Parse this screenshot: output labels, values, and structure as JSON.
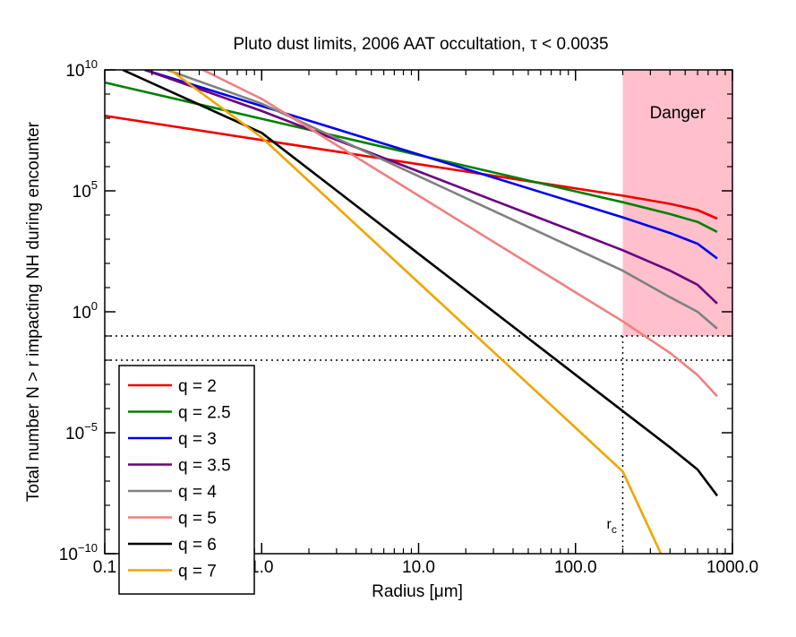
{
  "chart_data": {
    "type": "line",
    "title": "Pluto dust limits, 2006 AAT occultation, τ < 0.0035",
    "xlabel": "Radius [μm]",
    "ylabel": "Total number N > r impacting NH during encounter",
    "x_scale": "log",
    "y_scale": "log",
    "xlim": [
      0.1,
      1000
    ],
    "ylim": [
      1e-10,
      10000000000.0
    ],
    "x_ticks": [
      {
        "value": 0.1,
        "label": "0.1"
      },
      {
        "value": 1,
        "label": "1.0"
      },
      {
        "value": 10,
        "label": "10.0"
      },
      {
        "value": 100,
        "label": "100.0"
      },
      {
        "value": 1000,
        "label": "1000.0"
      }
    ],
    "y_ticks": [
      {
        "value": 1e-10,
        "base": "10",
        "exp": "−10"
      },
      {
        "value": 1e-05,
        "base": "10",
        "exp": "−5"
      },
      {
        "value": 1,
        "base": "10",
        "exp": "0"
      },
      {
        "value": 100000.0,
        "base": "10",
        "exp": "5"
      },
      {
        "value": 10000000000.0,
        "base": "10",
        "exp": "10"
      }
    ],
    "danger_region": {
      "x_min": 200,
      "x_max": 1000,
      "y_min": 0.1,
      "y_max": 10000000000.0,
      "label": "Danger",
      "color": "#ffc0cb"
    },
    "reference_lines": {
      "horizontal": [
        0.1,
        0.01
      ],
      "vertical": [
        {
          "x": 200,
          "label_base": "r",
          "label_sub": "c"
        }
      ]
    },
    "series": [
      {
        "name": "q = 2",
        "color": "#ee0000",
        "x": [
          0.1,
          1,
          10,
          100,
          200,
          400,
          600,
          800
        ],
        "y": [
          126000000.0,
          12600000.0,
          1260000.0,
          126000.0,
          63000.0,
          29000.0,
          16000.0,
          7100.0
        ]
      },
      {
        "name": "q = 2.5",
        "color": "#008000",
        "x": [
          0.1,
          1,
          10,
          100,
          200,
          400,
          600,
          800
        ],
        "y": [
          3000000000.0,
          95000000.0,
          3000000.0,
          95000.0,
          34000.0,
          11000.0,
          5200.0,
          2000.0
        ]
      },
      {
        "name": "q = 3",
        "color": "#0000ee",
        "x": [
          0.18,
          1,
          10,
          100,
          200,
          400,
          600,
          800
        ],
        "y": [
          10000000000.0,
          320000000.0,
          3200000.0,
          32000.0,
          8000.0,
          1800.0,
          650.0,
          160.0
        ]
      },
      {
        "name": "q = 3.5",
        "color": "#6a0080",
        "x": [
          0.18,
          1,
          10,
          100,
          200,
          400,
          600,
          800
        ],
        "y": [
          10000000000.0,
          200000000.0,
          630000.0,
          2000.0,
          350.0,
          50.0,
          13.0,
          2.2
        ]
      },
      {
        "name": "q = 4",
        "color": "#808080",
        "x": [
          0.25,
          1,
          10,
          100,
          200,
          400,
          600,
          800
        ],
        "y": [
          10000000000.0,
          400000000.0,
          400000.0,
          400.0,
          50.0,
          4.0,
          1.0,
          0.2
        ]
      },
      {
        "name": "q = 5",
        "color": "#f08080",
        "x": [
          0.1,
          1,
          10,
          100,
          200,
          400,
          600,
          800
        ],
        "y": [
          1000000000000.0,
          630000000.0,
          63000.0,
          6.3,
          0.4,
          0.02,
          0.0024,
          0.00032
        ]
      },
      {
        "name": "q = 6",
        "color": "#000000",
        "x": [
          0.13,
          1,
          10,
          100,
          200,
          400,
          600,
          800
        ],
        "y": [
          10000000000.0,
          25000000.0,
          250.0,
          0.0025,
          7.9e-05,
          2.5e-06,
          3e-07,
          2.5e-08
        ]
      },
      {
        "name": "q = 7",
        "color": "#f0a500",
        "x": [
          0.1,
          1,
          10,
          100,
          200,
          350
        ],
        "y": [
          1000000000000.0,
          16000000.0,
          16.0,
          1.6e-05,
          2.5e-07,
          1e-10
        ]
      }
    ],
    "legend": {
      "position": "bottom-left"
    }
  }
}
